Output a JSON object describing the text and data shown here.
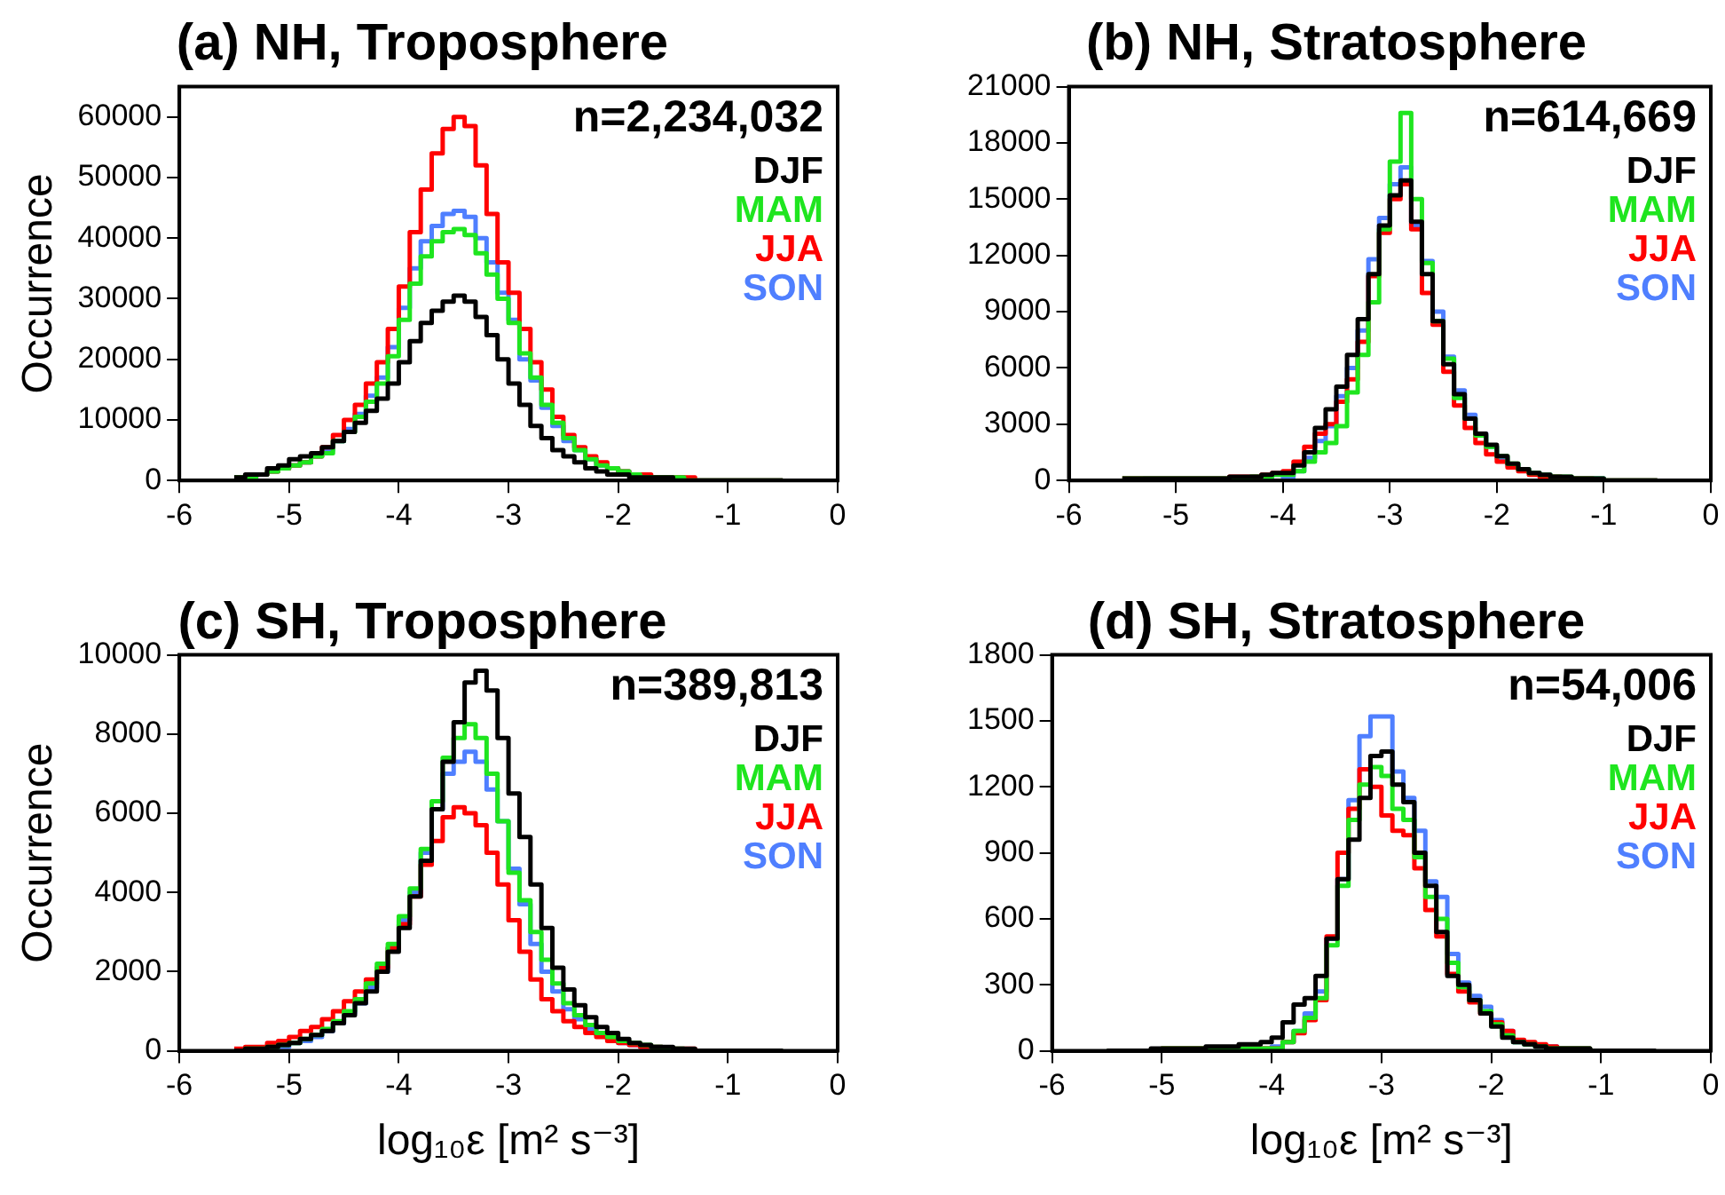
{
  "chart_data": [
    {
      "type": "histogram",
      "title": "(a) NH, Troposphere",
      "ylabel": "Occurrence",
      "annotations": [
        "n=2,234,032"
      ],
      "legend": "top right",
      "bins": [
        -5.5,
        -5.4,
        -5.3,
        -5.2,
        -5.1,
        -5.0,
        -4.9,
        -4.8,
        -4.7,
        -4.6,
        -4.5,
        -4.4,
        -4.3,
        -4.2,
        -4.1,
        -4.0,
        -3.9,
        -3.8,
        -3.7,
        -3.6,
        -3.5,
        -3.4,
        -3.3,
        -3.2,
        -3.1,
        -3.0,
        -2.9,
        -2.8,
        -2.7,
        -2.6,
        -2.5,
        -2.4,
        -2.3,
        -2.2,
        -2.1,
        -2.0,
        -1.9,
        -1.8,
        -1.7,
        -1.6,
        -1.5,
        -1.4,
        -1.3,
        -1.2,
        -1.1,
        -1.0,
        -0.9,
        -0.8,
        -0.7,
        -0.6,
        -0.5
      ],
      "series": [
        {
          "name": "DJF",
          "color": "#000000",
          "values": [
            500,
            1000,
            1000,
            2000,
            2500,
            3500,
            4000,
            4500,
            5500,
            6500,
            8000,
            9500,
            11500,
            13500,
            16000,
            19500,
            23000,
            26000,
            28000,
            29500,
            30500,
            29500,
            27000,
            24000,
            20000,
            16000,
            12500,
            9000,
            7000,
            5000,
            4000,
            3000,
            2000,
            1500,
            1000,
            1000,
            500,
            500,
            500,
            500,
            0,
            0,
            0,
            0,
            0,
            0,
            0,
            0,
            0,
            0
          ]
        },
        {
          "name": "MAM",
          "color": "#1fe51f",
          "values": [
            500,
            500,
            1000,
            1500,
            2000,
            2500,
            3000,
            4000,
            4500,
            6500,
            8000,
            10500,
            13000,
            16000,
            20500,
            26500,
            32500,
            37000,
            39500,
            41000,
            41500,
            40500,
            37500,
            34000,
            30000,
            26000,
            21000,
            17000,
            12500,
            9500,
            7000,
            5000,
            3500,
            2500,
            2000,
            1500,
            1000,
            500,
            500,
            500,
            500,
            0,
            0,
            0,
            0,
            0,
            0,
            0,
            0,
            0
          ]
        },
        {
          "name": "JJA",
          "color": "#ff0000",
          "values": [
            500,
            500,
            1000,
            1500,
            2000,
            2500,
            3000,
            4000,
            5500,
            7500,
            10000,
            12500,
            16000,
            19500,
            25000,
            32000,
            41000,
            48000,
            54000,
            58000,
            60000,
            58500,
            52000,
            44000,
            36000,
            31000,
            25000,
            19500,
            15000,
            10500,
            7500,
            5500,
            4000,
            3000,
            2000,
            1500,
            1000,
            1000,
            500,
            500,
            500,
            500,
            0,
            0,
            0,
            0,
            0,
            0,
            0,
            0
          ]
        },
        {
          "name": "SON",
          "color": "#4f7fff",
          "values": [
            500,
            500,
            1000,
            1500,
            2000,
            2500,
            3000,
            4000,
            5000,
            6500,
            8500,
            11000,
            14000,
            17000,
            22000,
            28500,
            35000,
            39500,
            42000,
            44000,
            44500,
            43500,
            40000,
            36000,
            31000,
            26500,
            20000,
            16500,
            12000,
            9000,
            6500,
            5000,
            3500,
            2500,
            2000,
            1500,
            1000,
            500,
            500,
            500,
            500,
            0,
            0,
            0,
            0,
            0,
            0,
            0,
            0,
            0
          ]
        }
      ],
      "xlim": [
        -6,
        0
      ],
      "xticks": [
        -6,
        -5,
        -4,
        -3,
        -2,
        -1,
        0
      ],
      "ylim": [
        0,
        65000
      ],
      "yticks": [
        0,
        10000,
        20000,
        30000,
        40000,
        50000,
        60000
      ]
    },
    {
      "type": "histogram",
      "title": "(b) NH, Stratosphere",
      "annotations": [
        "n=614,669"
      ],
      "legend": "top right",
      "bins": [
        -5.5,
        -5.4,
        -5.3,
        -5.2,
        -5.1,
        -5.0,
        -4.9,
        -4.8,
        -4.7,
        -4.6,
        -4.5,
        -4.4,
        -4.3,
        -4.2,
        -4.1,
        -4.0,
        -3.9,
        -3.8,
        -3.7,
        -3.6,
        -3.5,
        -3.4,
        -3.3,
        -3.2,
        -3.1,
        -3.0,
        -2.9,
        -2.8,
        -2.7,
        -2.6,
        -2.5,
        -2.4,
        -2.3,
        -2.2,
        -2.1,
        -2.0,
        -1.9,
        -1.8,
        -1.7,
        -1.6,
        -1.5,
        -1.4,
        -1.3,
        -1.2,
        -1.1,
        -1.0,
        -0.9,
        -0.8,
        -0.7,
        -0.6,
        -0.5
      ],
      "series": [
        {
          "name": "DJF",
          "color": "#000000",
          "values": [
            100,
            100,
            100,
            100,
            100,
            100,
            100,
            100,
            100,
            100,
            200,
            200,
            200,
            300,
            400,
            400,
            800,
            1500,
            2800,
            3800,
            5000,
            6700,
            8600,
            11000,
            13600,
            15200,
            16000,
            13800,
            11000,
            8500,
            6200,
            4600,
            3300,
            2500,
            1900,
            1300,
            900,
            600,
            400,
            300,
            200,
            200,
            100,
            100,
            100,
            0,
            0,
            0,
            0,
            0
          ]
        },
        {
          "name": "MAM",
          "color": "#1fe51f",
          "values": [
            100,
            100,
            100,
            100,
            100,
            100,
            100,
            100,
            100,
            100,
            100,
            100,
            200,
            200,
            300,
            300,
            500,
            1000,
            1500,
            2000,
            2900,
            4700,
            6700,
            9500,
            13400,
            17000,
            19600,
            15000,
            11600,
            8500,
            6500,
            4400,
            3300,
            2400,
            1800,
            1300,
            900,
            600,
            400,
            300,
            200,
            200,
            100,
            100,
            100,
            0,
            0,
            0,
            0,
            0
          ]
        },
        {
          "name": "JJA",
          "color": "#ff0000",
          "values": [
            100,
            100,
            100,
            100,
            100,
            100,
            100,
            100,
            100,
            100,
            200,
            200,
            200,
            300,
            400,
            500,
            1000,
            1800,
            2500,
            3000,
            4200,
            5400,
            7400,
            10900,
            13200,
            15000,
            15800,
            13400,
            10000,
            8300,
            5800,
            4000,
            2800,
            2000,
            1400,
            1000,
            700,
            500,
            300,
            200,
            200,
            100,
            100,
            100,
            0,
            0,
            0,
            0,
            0,
            0
          ]
        },
        {
          "name": "SON",
          "color": "#4f7fff",
          "values": [
            0,
            0,
            100,
            100,
            100,
            100,
            100,
            100,
            100,
            100,
            100,
            100,
            200,
            200,
            300,
            200,
            500,
            1200,
            2100,
            2900,
            4500,
            6000,
            8000,
            11800,
            14000,
            15800,
            16700,
            13600,
            11700,
            9000,
            6600,
            4800,
            3500,
            2500,
            1800,
            1200,
            800,
            600,
            400,
            300,
            200,
            100,
            100,
            100,
            100,
            0,
            0,
            0,
            0,
            0
          ]
        }
      ],
      "xlim": [
        -6,
        0
      ],
      "xticks": [
        -6,
        -5,
        -4,
        -3,
        -2,
        -1,
        0
      ],
      "ylim": [
        0,
        21000
      ],
      "yticks": [
        0,
        3000,
        6000,
        9000,
        12000,
        15000,
        18000,
        21000
      ]
    },
    {
      "type": "histogram",
      "title": "(c) SH, Troposphere",
      "ylabel": "Occurrence",
      "xlabel": "log₁₀ε [m² s⁻³]",
      "annotations": [
        "n=389,813"
      ],
      "legend": "top right",
      "bins": [
        -5.5,
        -5.4,
        -5.3,
        -5.2,
        -5.1,
        -5.0,
        -4.9,
        -4.8,
        -4.7,
        -4.6,
        -4.5,
        -4.4,
        -4.3,
        -4.2,
        -4.1,
        -4.0,
        -3.9,
        -3.8,
        -3.7,
        -3.6,
        -3.5,
        -3.4,
        -3.3,
        -3.2,
        -3.1,
        -3.0,
        -2.9,
        -2.8,
        -2.7,
        -2.6,
        -2.5,
        -2.4,
        -2.3,
        -2.2,
        -2.1,
        -2.0,
        -1.9,
        -1.8,
        -1.7,
        -1.6,
        -1.5,
        -1.4,
        -1.3,
        -1.2,
        -1.1,
        -1.0,
        -0.9,
        -0.8,
        -0.7,
        -0.6,
        -0.5
      ],
      "series": [
        {
          "name": "DJF",
          "color": "#000000",
          "values": [
            0,
            50,
            50,
            100,
            150,
            200,
            300,
            400,
            500,
            700,
            900,
            1200,
            1500,
            2000,
            2500,
            3100,
            3900,
            4800,
            6100,
            7300,
            8300,
            9300,
            9600,
            9100,
            7900,
            6500,
            5400,
            4200,
            3100,
            2100,
            1550,
            1150,
            850,
            600,
            450,
            300,
            200,
            150,
            100,
            100,
            50,
            50,
            0,
            0,
            0,
            0,
            0,
            0,
            0,
            0
          ]
        },
        {
          "name": "MAM",
          "color": "#1fe51f",
          "values": [
            0,
            50,
            50,
            100,
            150,
            200,
            300,
            400,
            550,
            750,
            1000,
            1300,
            1700,
            2200,
            2700,
            3400,
            4100,
            5100,
            6300,
            7400,
            7900,
            8250,
            7900,
            7000,
            5800,
            4500,
            3800,
            3000,
            2300,
            1700,
            1200,
            900,
            650,
            450,
            350,
            250,
            200,
            150,
            100,
            50,
            50,
            0,
            0,
            0,
            0,
            0,
            0,
            0,
            0,
            0
          ]
        },
        {
          "name": "JJA",
          "color": "#ff0000",
          "values": [
            50,
            100,
            100,
            200,
            250,
            350,
            500,
            600,
            800,
            1000,
            1250,
            1500,
            1800,
            2100,
            2600,
            3200,
            3900,
            4700,
            5300,
            5900,
            6150,
            6000,
            5700,
            5000,
            4200,
            3300,
            2500,
            1800,
            1300,
            1000,
            750,
            600,
            450,
            350,
            250,
            200,
            150,
            100,
            100,
            50,
            50,
            50,
            0,
            0,
            0,
            0,
            0,
            0,
            0,
            0
          ]
        },
        {
          "name": "SON",
          "color": "#4f7fff",
          "values": [
            0,
            50,
            50,
            100,
            100,
            200,
            250,
            350,
            500,
            700,
            950,
            1200,
            1600,
            2000,
            2600,
            3300,
            4000,
            5000,
            6100,
            7000,
            7300,
            7550,
            7300,
            6600,
            5800,
            4600,
            3700,
            2700,
            2000,
            1500,
            1050,
            800,
            550,
            400,
            300,
            200,
            150,
            100,
            100,
            50,
            50,
            0,
            0,
            0,
            0,
            0,
            0,
            0,
            0,
            0
          ]
        }
      ],
      "xlim": [
        -6,
        0
      ],
      "xticks": [
        -6,
        -5,
        -4,
        -3,
        -2,
        -1,
        0
      ],
      "ylim": [
        0,
        10000
      ],
      "yticks": [
        0,
        2000,
        4000,
        6000,
        8000,
        10000
      ]
    },
    {
      "type": "histogram",
      "title": "(d) SH, Stratosphere",
      "xlabel": "log₁₀ε [m² s⁻³]",
      "annotations": [
        "n=54,006"
      ],
      "legend": "top right",
      "bins": [
        -5.5,
        -5.4,
        -5.3,
        -5.2,
        -5.1,
        -5.0,
        -4.9,
        -4.8,
        -4.7,
        -4.6,
        -4.5,
        -4.4,
        -4.3,
        -4.2,
        -4.1,
        -4.0,
        -3.9,
        -3.8,
        -3.7,
        -3.6,
        -3.5,
        -3.4,
        -3.3,
        -3.2,
        -3.1,
        -3.0,
        -2.9,
        -2.8,
        -2.7,
        -2.6,
        -2.5,
        -2.4,
        -2.3,
        -2.2,
        -2.1,
        -2.0,
        -1.9,
        -1.8,
        -1.7,
        -1.6,
        -1.5,
        -1.4,
        -1.3,
        -1.2,
        -1.1,
        -1.0,
        -0.9,
        -0.8,
        -0.7,
        -0.6,
        -0.5
      ],
      "series": [
        {
          "name": "DJF",
          "color": "#000000",
          "values": [
            0,
            0,
            0,
            0,
            10,
            10,
            10,
            10,
            10,
            20,
            20,
            20,
            30,
            30,
            40,
            60,
            130,
            210,
            240,
            340,
            510,
            780,
            960,
            1150,
            1340,
            1360,
            1210,
            1130,
            900,
            750,
            540,
            340,
            300,
            230,
            170,
            110,
            60,
            40,
            30,
            20,
            10,
            10,
            10,
            10,
            0,
            0,
            0,
            0,
            0,
            0
          ]
        },
        {
          "name": "MAM",
          "color": "#1fe51f",
          "values": [
            0,
            0,
            0,
            0,
            0,
            10,
            10,
            10,
            10,
            10,
            10,
            10,
            10,
            10,
            10,
            10,
            40,
            90,
            150,
            240,
            480,
            750,
            1050,
            1210,
            1290,
            1250,
            1100,
            1050,
            880,
            700,
            600,
            400,
            290,
            230,
            180,
            120,
            70,
            40,
            30,
            20,
            10,
            10,
            10,
            10,
            0,
            0,
            0,
            0,
            0,
            0
          ]
        },
        {
          "name": "JJA",
          "color": "#ff0000",
          "values": [
            0,
            0,
            0,
            0,
            0,
            10,
            10,
            10,
            10,
            10,
            10,
            10,
            10,
            10,
            10,
            10,
            40,
            80,
            140,
            230,
            520,
            900,
            1100,
            1280,
            1200,
            1070,
            1000,
            980,
            830,
            640,
            520,
            350,
            270,
            220,
            170,
            130,
            90,
            50,
            40,
            30,
            20,
            10,
            10,
            10,
            0,
            0,
            0,
            0,
            0,
            0
          ]
        },
        {
          "name": "SON",
          "color": "#4f7fff",
          "values": [
            0,
            0,
            0,
            0,
            0,
            0,
            0,
            0,
            0,
            0,
            10,
            10,
            10,
            10,
            10,
            20,
            40,
            90,
            170,
            270,
            510,
            780,
            1140,
            1430,
            1520,
            1520,
            1270,
            1150,
            1000,
            770,
            700,
            440,
            310,
            250,
            200,
            140,
            90,
            40,
            30,
            20,
            20,
            10,
            10,
            10,
            0,
            0,
            0,
            0,
            0,
            0
          ]
        }
      ],
      "xlim": [
        -6,
        0
      ],
      "xticks": [
        -6,
        -5,
        -4,
        -3,
        -2,
        -1,
        0
      ],
      "ylim": [
        0,
        1800
      ],
      "yticks": [
        0,
        300,
        600,
        900,
        1200,
        1500,
        1800
      ]
    }
  ]
}
